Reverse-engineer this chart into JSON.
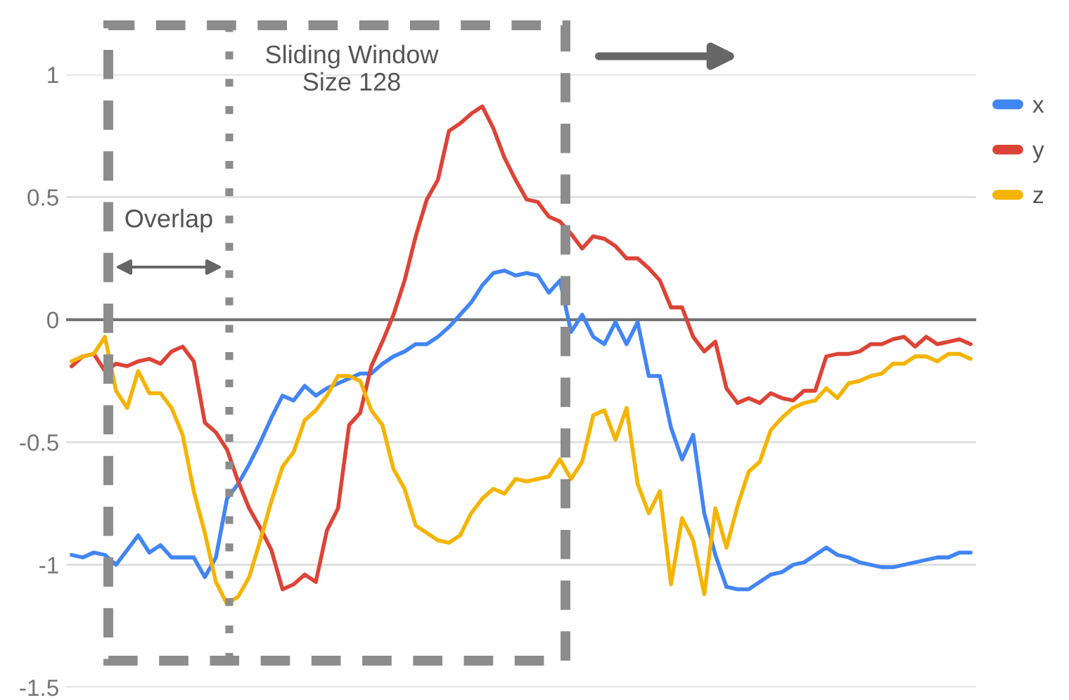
{
  "chart_data": {
    "type": "line",
    "categories": [
      null,
      null,
      null,
      null,
      null,
      null,
      null,
      null,
      null,
      null,
      null,
      null,
      null,
      null,
      null,
      null,
      null,
      null,
      null,
      null,
      null,
      null,
      null,
      null,
      null,
      null,
      null,
      null,
      null,
      null,
      null,
      null,
      null,
      null,
      null,
      null,
      null,
      null,
      null,
      null,
      null,
      null,
      null,
      null,
      null,
      null,
      null,
      null,
      null,
      null,
      null,
      null,
      null,
      null,
      null,
      null,
      null,
      null,
      null,
      null,
      null,
      null,
      null,
      null,
      null,
      null,
      null,
      null,
      null,
      null,
      null,
      null,
      null,
      null,
      null,
      null,
      null,
      null,
      null,
      null,
      null,
      null
    ],
    "series": [
      {
        "name": "x",
        "color": "#4285f4",
        "values": [
          -0.96,
          -0.97,
          -0.95,
          -0.96,
          -1.0,
          -0.94,
          -0.88,
          -0.95,
          -0.92,
          -0.97,
          -0.97,
          -0.97,
          -1.05,
          -0.97,
          -0.73,
          -0.67,
          -0.59,
          -0.5,
          -0.4,
          -0.31,
          -0.33,
          -0.27,
          -0.31,
          -0.28,
          -0.26,
          -0.24,
          -0.22,
          -0.22,
          -0.18,
          -0.15,
          -0.13,
          -0.1,
          -0.1,
          -0.07,
          -0.03,
          0.02,
          0.07,
          0.14,
          0.19,
          0.2,
          0.18,
          0.19,
          0.18,
          0.11,
          0.16,
          -0.05,
          0.02,
          -0.07,
          -0.1,
          -0.01,
          -0.1,
          -0.01,
          -0.23,
          -0.23,
          -0.44,
          -0.57,
          -0.47,
          -0.79,
          -0.96,
          -1.09,
          -1.1,
          -1.1,
          -1.07,
          -1.04,
          -1.03,
          -1.0,
          -0.99,
          -0.96,
          -0.93,
          -0.96,
          -0.97,
          -0.99,
          -1.0,
          -1.01,
          -1.01,
          -1.0,
          -0.99,
          -0.98,
          -0.97,
          -0.97,
          -0.95,
          -0.95
        ]
      },
      {
        "name": "y",
        "color": "#db4437",
        "values": [
          -0.19,
          -0.15,
          -0.14,
          -0.21,
          -0.18,
          -0.19,
          -0.17,
          -0.16,
          -0.18,
          -0.13,
          -0.11,
          -0.17,
          -0.42,
          -0.46,
          -0.53,
          -0.66,
          -0.77,
          -0.85,
          -0.94,
          -1.1,
          -1.08,
          -1.04,
          -1.07,
          -0.86,
          -0.77,
          -0.43,
          -0.38,
          -0.19,
          -0.09,
          0.02,
          0.16,
          0.34,
          0.49,
          0.57,
          0.77,
          0.8,
          0.84,
          0.87,
          0.78,
          0.66,
          0.57,
          0.49,
          0.48,
          0.42,
          0.4,
          0.35,
          0.29,
          0.34,
          0.33,
          0.3,
          0.25,
          0.25,
          0.21,
          0.16,
          0.05,
          0.05,
          -0.07,
          -0.13,
          -0.09,
          -0.28,
          -0.34,
          -0.32,
          -0.34,
          -0.3,
          -0.32,
          -0.33,
          -0.29,
          -0.29,
          -0.15,
          -0.14,
          -0.14,
          -0.13,
          -0.1,
          -0.1,
          -0.08,
          -0.07,
          -0.11,
          -0.07,
          -0.1,
          -0.09,
          -0.08,
          -0.1
        ]
      },
      {
        "name": "z",
        "color": "#f4b400",
        "values": [
          -0.17,
          -0.15,
          -0.14,
          -0.07,
          -0.29,
          -0.36,
          -0.21,
          -0.3,
          -0.3,
          -0.36,
          -0.47,
          -0.7,
          -0.87,
          -1.07,
          -1.16,
          -1.13,
          -1.05,
          -0.9,
          -0.74,
          -0.6,
          -0.54,
          -0.41,
          -0.37,
          -0.31,
          -0.23,
          -0.23,
          -0.25,
          -0.37,
          -0.43,
          -0.61,
          -0.69,
          -0.84,
          -0.87,
          -0.9,
          -0.91,
          -0.88,
          -0.79,
          -0.73,
          -0.69,
          -0.71,
          -0.65,
          -0.66,
          -0.65,
          -0.64,
          -0.57,
          -0.65,
          -0.58,
          -0.39,
          -0.37,
          -0.49,
          -0.36,
          -0.67,
          -0.79,
          -0.7,
          -1.08,
          -0.81,
          -0.9,
          -1.12,
          -0.77,
          -0.93,
          -0.76,
          -0.62,
          -0.58,
          -0.45,
          -0.4,
          -0.36,
          -0.34,
          -0.33,
          -0.28,
          -0.32,
          -0.26,
          -0.25,
          -0.23,
          -0.22,
          -0.18,
          -0.18,
          -0.15,
          -0.15,
          -0.17,
          -0.14,
          -0.14,
          -0.16
        ]
      }
    ],
    "ylim": [
      -1.5,
      1
    ],
    "yticks": [
      -1.5,
      -1,
      -0.5,
      0,
      0.5,
      1
    ],
    "grid": "y",
    "legend": "right",
    "tick_labels": "y",
    "ref_lines": [
      {
        "axis": "y",
        "value": 0,
        "color": "#757575"
      }
    ],
    "annotations": [
      "Sliding Window\nSize 128",
      "Overlap"
    ]
  }
}
